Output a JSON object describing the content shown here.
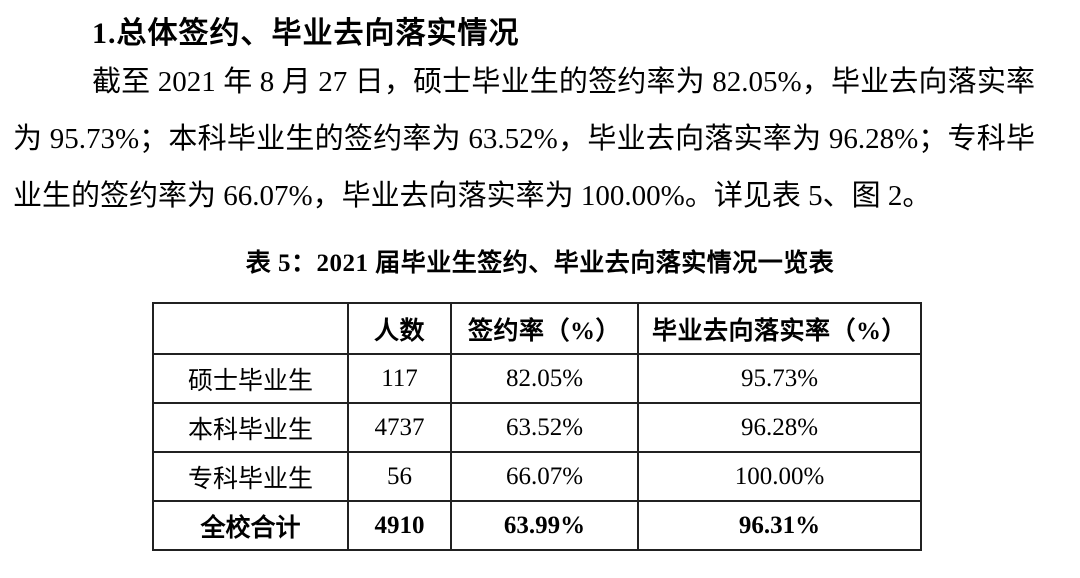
{
  "document": {
    "heading": "1.总体签约、毕业去向落实情况",
    "paragraph": {
      "full_text": "截至 2021 年 8 月 27 日，硕士毕业生的签约率为 82.05%，毕业去向落实率为 95.73%；本科毕业生的签约率为 63.52%，毕业去向落实率为 96.28%；专科毕业生的签约率为 66.07%，毕业去向落实率为 100.00%。详见表 5、图 2。",
      "lines": [
        "截至 2021 年 8 月 27 日，硕士毕业生的签约率为 82.05%，毕业去向落实率",
        "为 95.73%；本科毕业生的签约率为 63.52%，毕业去向落实率为 96.28%；专科毕",
        "业生的签约率为 66.07%，毕业去向落实率为 100.00%。详见表 5、图 2。"
      ]
    },
    "table_caption": "表 5：2021 届毕业生签约、毕业去向落实情况一览表",
    "table": {
      "headers": [
        "",
        "人数",
        "签约率（%）",
        "毕业去向落实率（%）"
      ],
      "rows": [
        {
          "label": "硕士毕业生",
          "count": "117",
          "sign_rate": "82.05%",
          "impl_rate": "95.73%"
        },
        {
          "label": "本科毕业生",
          "count": "4737",
          "sign_rate": "63.52%",
          "impl_rate": "96.28%"
        },
        {
          "label": "专科毕业生",
          "count": "56",
          "sign_rate": "66.07%",
          "impl_rate": "100.00%"
        },
        {
          "label": "全校合计",
          "count": "4910",
          "sign_rate": "63.99%",
          "impl_rate": "96.31%"
        }
      ]
    },
    "colors": {
      "text": "#000000",
      "border": "#212121",
      "background": "#ffffff"
    }
  }
}
